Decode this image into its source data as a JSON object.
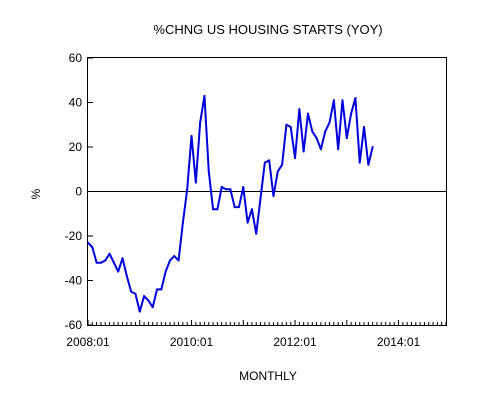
{
  "chart_data": {
    "type": "line",
    "title": "%CHNG US HOUSING STARTS (YOY)",
    "xlabel": "MONTHLY",
    "ylabel": "%",
    "ylim": [
      -60,
      60
    ],
    "yticks": [
      -60,
      -40,
      -20,
      0,
      20,
      40,
      60
    ],
    "xlim": [
      "2008-01",
      "2014-12"
    ],
    "x_tick_labels": [
      "2008:01",
      "2010:01",
      "2012:01",
      "2014:01"
    ],
    "grid": false,
    "legend": "none",
    "zero_line": true,
    "series_color": "#0000dd",
    "x": [
      "2008-01",
      "2008-02",
      "2008-03",
      "2008-04",
      "2008-05",
      "2008-06",
      "2008-07",
      "2008-08",
      "2008-09",
      "2008-10",
      "2008-11",
      "2008-12",
      "2009-01",
      "2009-02",
      "2009-03",
      "2009-04",
      "2009-05",
      "2009-06",
      "2009-07",
      "2009-08",
      "2009-09",
      "2009-10",
      "2009-11",
      "2009-12",
      "2010-01",
      "2010-02",
      "2010-03",
      "2010-04",
      "2010-05",
      "2010-06",
      "2010-07",
      "2010-08",
      "2010-09",
      "2010-10",
      "2010-11",
      "2010-12",
      "2011-01",
      "2011-02",
      "2011-03",
      "2011-04",
      "2011-05",
      "2011-06",
      "2011-07",
      "2011-08",
      "2011-09",
      "2011-10",
      "2011-11",
      "2011-12",
      "2012-01",
      "2012-02",
      "2012-03",
      "2012-04",
      "2012-05",
      "2012-06",
      "2012-07",
      "2012-08",
      "2012-09",
      "2012-10",
      "2012-11",
      "2012-12",
      "2013-01",
      "2013-02",
      "2013-03",
      "2013-04",
      "2013-05",
      "2013-06",
      "2013-07",
      "2013-08",
      "2013-09",
      "2013-10",
      "2013-11",
      "2013-12",
      "2014-01",
      "2014-02",
      "2014-03",
      "2014-04",
      "2014-05",
      "2014-06",
      "2014-07",
      "2014-08",
      "2014-09",
      "2014-10",
      "2014-11",
      "2014-12"
    ],
    "series": [
      {
        "values": [
          -23,
          -25,
          -32,
          -32,
          -31,
          -28,
          -32,
          -36,
          -30,
          -38,
          -45,
          -46,
          -54,
          -47,
          -49,
          -52,
          -44,
          -44,
          -36,
          -31,
          -29,
          -31,
          -14,
          1,
          25,
          4,
          31,
          43,
          9,
          -8,
          -8,
          2,
          1,
          1,
          -7,
          -7,
          2,
          -14,
          -8,
          -19,
          -3,
          13,
          14,
          -2,
          9,
          12,
          30,
          29,
          15,
          37,
          18,
          35,
          27,
          24,
          19,
          27,
          31,
          41,
          19,
          41,
          24,
          35,
          42,
          13,
          29,
          12,
          20,
          null,
          null,
          null,
          null,
          null,
          null,
          null,
          null,
          null,
          null,
          null,
          null,
          null,
          null,
          null,
          null,
          null
        ]
      }
    ]
  }
}
